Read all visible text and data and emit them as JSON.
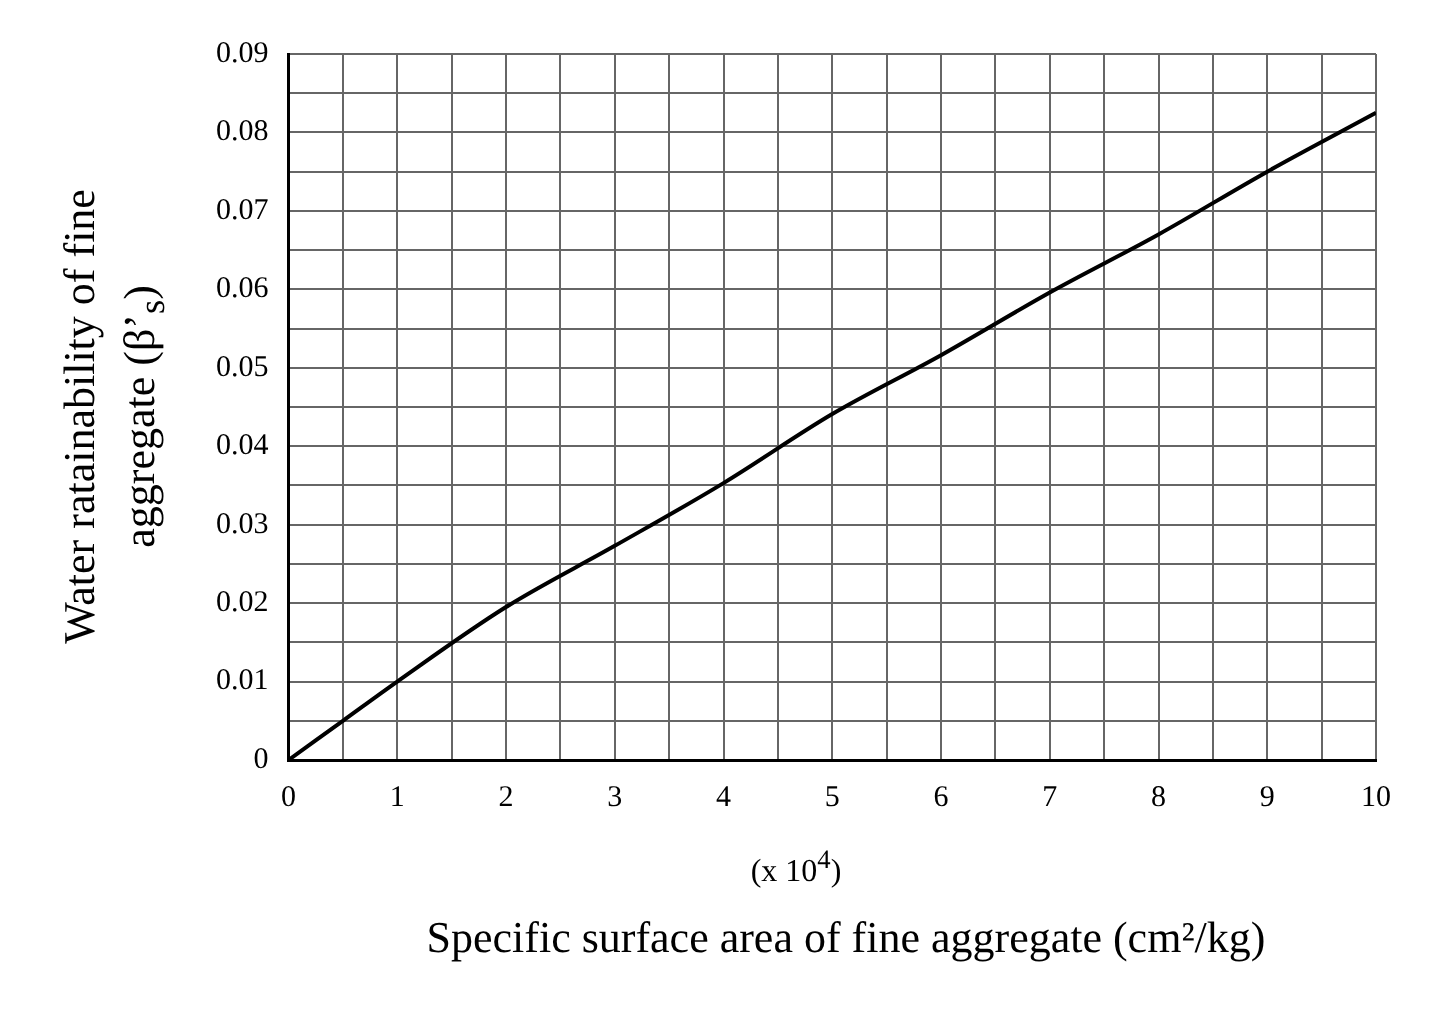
{
  "chart_data": {
    "type": "line",
    "xlabel": "Specific surface area of fine aggregate (cm²/kg)",
    "ylabel": "Water ratainability of fine aggregate (β’$_{s}$)",
    "annotations": [
      "(x 10$^{4}$)"
    ],
    "x": [
      0,
      0.5,
      1,
      2,
      3,
      4,
      5,
      6,
      7,
      8,
      9,
      10
    ],
    "series": [
      {
        "color": "#000000",
        "values": [
          0,
          0.005,
          0.01,
          0.0195,
          0.0273,
          0.0353,
          0.0441,
          0.0516,
          0.0596,
          0.067,
          0.075,
          0.0825
        ]
      }
    ],
    "xlim": [
      0,
      10
    ],
    "ylim": [
      0,
      0.09
    ],
    "xticks": [
      0,
      {
        "value": 0.5,
        "label": null
      },
      1,
      {
        "value": 1.5,
        "label": null
      },
      2,
      {
        "value": 2.5,
        "label": null
      },
      3,
      {
        "value": 3.5,
        "label": null
      },
      4,
      {
        "value": 4.5,
        "label": null
      },
      5,
      {
        "value": 5.5,
        "label": null
      },
      6,
      {
        "value": 6.5,
        "label": null
      },
      7,
      {
        "value": 7.5,
        "label": null
      },
      8,
      {
        "value": 8.5,
        "label": null
      },
      9,
      {
        "value": 9.5,
        "label": null
      },
      10
    ],
    "yticks": [
      0,
      {
        "value": 0.005,
        "label": null
      },
      0.01,
      {
        "value": 0.015,
        "label": null
      },
      0.02,
      {
        "value": 0.025,
        "label": null
      },
      0.03,
      {
        "value": 0.035,
        "label": null
      },
      0.04,
      {
        "value": 0.045,
        "label": null
      },
      0.05,
      {
        "value": 0.055,
        "label": null
      },
      0.06,
      {
        "value": 0.065,
        "label": null
      },
      0.07,
      {
        "value": 0.075,
        "label": null
      },
      0.08,
      {
        "value": 0.085,
        "label": null
      },
      0.09
    ],
    "grid": true,
    "legend": false,
    "marker": "none",
    "line_style": "solid"
  }
}
